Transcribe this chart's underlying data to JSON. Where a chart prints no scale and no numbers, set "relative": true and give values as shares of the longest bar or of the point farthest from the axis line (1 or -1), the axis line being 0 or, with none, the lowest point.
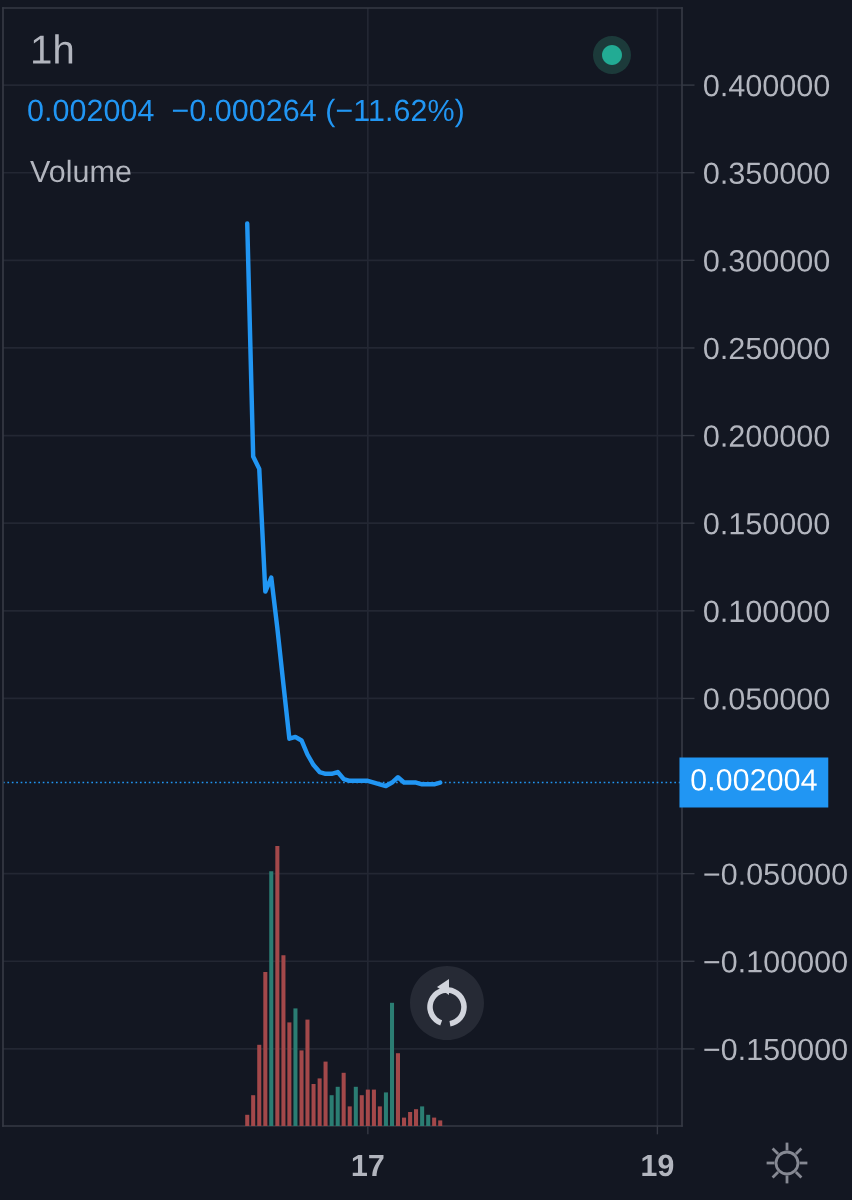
{
  "chart_data": [
    {
      "type": "line",
      "title": "1h",
      "subtitle": "0.002004  −0.000264 (−11.62%)",
      "x": [
        16.167,
        16.208,
        16.25,
        16.292,
        16.333,
        16.375,
        16.417,
        16.458,
        16.5,
        16.542,
        16.583,
        16.625,
        16.667,
        16.708,
        16.75,
        16.792,
        16.833,
        16.875,
        16.917,
        16.958,
        17.0,
        17.042,
        17.083,
        17.125,
        17.167,
        17.208,
        17.25,
        17.292,
        17.333,
        17.375,
        17.417,
        17.458,
        17.5
      ],
      "series": [
        {
          "color": "#2196f3",
          "values": [
            0.321,
            0.188,
            0.181,
            0.111,
            0.119,
            0.09,
            0.058,
            0.027,
            0.028,
            0.026,
            0.018,
            0.012,
            0.008,
            0.007,
            0.007,
            0.008,
            0.004,
            0.003,
            0.003,
            0.003,
            0.003,
            0.002,
            0.001,
            0,
            0.002,
            0.005,
            0.002,
            0.002,
            0.002,
            0.001,
            0.001,
            0.001,
            0.002
          ]
        }
      ],
      "xlim": [
        14.48,
        19.17
      ],
      "xticks": [
        17,
        19
      ],
      "ylim": [
        -0.194,
        0.444
      ],
      "yticks": [
        {
          "value": 0.4,
          "label": "0.400000"
        },
        {
          "value": 0.35,
          "label": "0.350000"
        },
        {
          "value": 0.3,
          "label": "0.300000"
        },
        {
          "value": 0.25,
          "label": "0.250000"
        },
        {
          "value": 0.2,
          "label": "0.200000"
        },
        {
          "value": 0.15,
          "label": "0.150000"
        },
        {
          "value": 0.1,
          "label": "0.100000"
        },
        {
          "value": 0.05,
          "label": "0.050000"
        },
        {
          "value": -0.05,
          "label": "−0.050000"
        },
        {
          "value": -0.1,
          "label": "−0.100000"
        },
        {
          "value": -0.15,
          "label": "−0.150000"
        }
      ],
      "grid": true,
      "ref_lines": [
        {
          "axis": "y",
          "value": 0.002004,
          "label": "0.002004",
          "color": "#2196f3",
          "line_style": "dotted"
        }
      ]
    },
    {
      "type": "bar",
      "title": "Volume",
      "x": [
        16.167,
        16.208,
        16.25,
        16.292,
        16.333,
        16.375,
        16.417,
        16.458,
        16.5,
        16.542,
        16.583,
        16.625,
        16.667,
        16.708,
        16.75,
        16.792,
        16.833,
        16.875,
        16.917,
        16.958,
        17.0,
        17.042,
        17.083,
        17.125,
        17.167,
        17.208,
        17.25,
        17.292,
        17.333,
        17.375,
        17.417,
        17.458,
        17.5
      ],
      "values": [
        0.04,
        0.11,
        0.29,
        0.55,
        0.91,
        1,
        0.61,
        0.37,
        0.42,
        0.27,
        0.38,
        0.15,
        0.17,
        0.23,
        0.11,
        0.14,
        0.19,
        0.07,
        0.14,
        0.11,
        0.13,
        0.13,
        0.07,
        0.12,
        0.44,
        0.26,
        0.03,
        0.05,
        0.06,
        0.07,
        0.04,
        0.03,
        0.02
      ],
      "colors": [
        "#a3484a",
        "#a3484a",
        "#a3484a",
        "#a3484a",
        "#2b7d73",
        "#a3484a",
        "#a3484a",
        "#a3484a",
        "#2b7d73",
        "#a3484a",
        "#a3484a",
        "#a3484a",
        "#a3484a",
        "#a3484a",
        "#2b7d73",
        "#2b7d73",
        "#a3484a",
        "#a3484a",
        "#2b7d73",
        "#a3484a",
        "#a3484a",
        "#a3484a",
        "#a3484a",
        "#2b7d73",
        "#2b7d73",
        "#a3484a",
        "#a3484a",
        "#a3484a",
        "#a3484a",
        "#2b7d73",
        "#2b7d73",
        "#a3484a",
        "#a3484a"
      ],
      "relative": true,
      "xlim": [
        14.48,
        19.17
      ]
    }
  ]
}
